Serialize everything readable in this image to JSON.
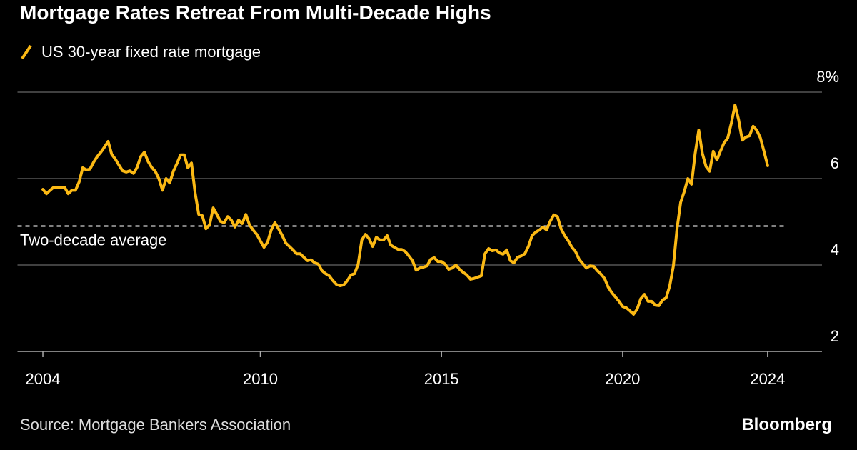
{
  "chart_data": {
    "type": "line",
    "title": "Mortgage Rates Retreat From Multi-Decade Highs",
    "source": "Source: Mortgage Bankers Association",
    "brand": "Bloomberg",
    "x": [
      2004,
      2004.1,
      2004.2,
      2004.3,
      2004.4,
      2004.5,
      2004.6,
      2004.7,
      2004.8,
      2004.9,
      2005,
      2005.1,
      2005.2,
      2005.3,
      2005.4,
      2005.5,
      2005.6,
      2005.7,
      2005.8,
      2005.9,
      2006,
      2006.1,
      2006.2,
      2006.3,
      2006.4,
      2006.5,
      2006.6,
      2006.7,
      2006.8,
      2006.9,
      2007,
      2007.1,
      2007.2,
      2007.3,
      2007.4,
      2007.5,
      2007.6,
      2007.7,
      2007.8,
      2007.9,
      2008,
      2008.1,
      2008.2,
      2008.3,
      2008.4,
      2008.5,
      2008.6,
      2008.7,
      2008.8,
      2008.9,
      2009,
      2009.1,
      2009.2,
      2009.3,
      2009.4,
      2009.5,
      2009.6,
      2009.7,
      2009.8,
      2009.9,
      2010,
      2010.1,
      2010.2,
      2010.3,
      2010.4,
      2010.5,
      2010.6,
      2010.7,
      2010.8,
      2010.9,
      2011,
      2011.1,
      2011.2,
      2011.3,
      2011.4,
      2011.5,
      2011.6,
      2011.7,
      2011.8,
      2011.9,
      2012,
      2012.1,
      2012.2,
      2012.3,
      2012.4,
      2012.5,
      2012.6,
      2012.7,
      2012.8,
      2012.9,
      2013,
      2013.1,
      2013.2,
      2013.3,
      2013.4,
      2013.5,
      2013.6,
      2013.7,
      2013.8,
      2013.9,
      2014,
      2014.1,
      2014.2,
      2014.3,
      2014.4,
      2014.5,
      2014.6,
      2014.7,
      2014.8,
      2014.9,
      2015,
      2015.1,
      2015.2,
      2015.3,
      2015.4,
      2015.5,
      2015.6,
      2015.7,
      2015.8,
      2015.9,
      2016,
      2016.1,
      2016.2,
      2016.3,
      2016.4,
      2016.5,
      2016.6,
      2016.7,
      2016.8,
      2016.9,
      2017,
      2017.1,
      2017.2,
      2017.3,
      2017.4,
      2017.5,
      2017.6,
      2017.7,
      2017.8,
      2017.9,
      2018,
      2018.1,
      2018.2,
      2018.3,
      2018.4,
      2018.5,
      2018.6,
      2018.7,
      2018.8,
      2018.9,
      2019,
      2019.1,
      2019.2,
      2019.3,
      2019.4,
      2019.5,
      2019.6,
      2019.7,
      2019.8,
      2019.9,
      2020,
      2020.1,
      2020.2,
      2020.3,
      2020.4,
      2020.5,
      2020.6,
      2020.7,
      2020.8,
      2020.9,
      2021,
      2021.1,
      2021.2,
      2021.3,
      2021.4,
      2021.5,
      2021.6,
      2021.7,
      2021.8,
      2021.9,
      2022,
      2022.1,
      2022.2,
      2022.3,
      2022.4,
      2022.5,
      2022.6,
      2022.7,
      2022.8,
      2022.9,
      2023,
      2023.1,
      2023.2,
      2023.3,
      2023.4,
      2023.5,
      2023.6,
      2023.7,
      2023.8,
      2023.9,
      2024
    ],
    "series": [
      {
        "name": "US 30-year fixed rate mortgage",
        "color": "#fbb914",
        "values": [
          5.75,
          5.65,
          5.73,
          5.8,
          5.8,
          5.8,
          5.8,
          5.65,
          5.73,
          5.73,
          5.92,
          6.25,
          6.2,
          6.22,
          6.38,
          6.51,
          6.61,
          6.73,
          6.86,
          6.56,
          6.45,
          6.31,
          6.18,
          6.15,
          6.18,
          6.12,
          6.26,
          6.51,
          6.61,
          6.4,
          6.26,
          6.17,
          6.0,
          5.73,
          6.0,
          5.9,
          6.17,
          6.35,
          6.55,
          6.55,
          6.25,
          6.36,
          5.67,
          5.17,
          5.14,
          4.84,
          4.93,
          5.32,
          5.17,
          5.01,
          4.98,
          5.12,
          5.04,
          4.88,
          5.04,
          4.96,
          5.17,
          4.93,
          4.81,
          4.71,
          4.56,
          4.41,
          4.53,
          4.81,
          4.98,
          4.84,
          4.69,
          4.51,
          4.43,
          4.35,
          4.26,
          4.26,
          4.18,
          4.1,
          4.12,
          4.05,
          4.02,
          3.87,
          3.8,
          3.75,
          3.64,
          3.55,
          3.52,
          3.54,
          3.64,
          3.77,
          3.8,
          4.02,
          4.58,
          4.71,
          4.61,
          4.43,
          4.64,
          4.58,
          4.58,
          4.68,
          4.46,
          4.41,
          4.36,
          4.36,
          4.31,
          4.21,
          4.1,
          3.88,
          3.93,
          3.95,
          3.98,
          4.13,
          4.17,
          4.08,
          4.08,
          4.02,
          3.9,
          3.93,
          4.0,
          3.9,
          3.83,
          3.77,
          3.67,
          3.69,
          3.72,
          3.75,
          4.26,
          4.38,
          4.33,
          4.35,
          4.28,
          4.25,
          4.35,
          4.1,
          4.05,
          4.18,
          4.21,
          4.26,
          4.43,
          4.68,
          4.76,
          4.81,
          4.88,
          4.81,
          5.01,
          5.16,
          5.12,
          4.84,
          4.68,
          4.56,
          4.41,
          4.31,
          4.13,
          4.03,
          3.93,
          3.98,
          3.97,
          3.87,
          3.79,
          3.69,
          3.49,
          3.36,
          3.26,
          3.16,
          3.04,
          3.01,
          2.94,
          2.86,
          2.98,
          3.22,
          3.32,
          3.16,
          3.16,
          3.07,
          3.06,
          3.19,
          3.24,
          3.52,
          3.98,
          4.84,
          5.45,
          5.7,
          6.0,
          5.87,
          6.58,
          7.12,
          6.58,
          6.28,
          6.17,
          6.63,
          6.43,
          6.64,
          6.83,
          6.94,
          7.29,
          7.7,
          7.36,
          6.89,
          6.96,
          6.99,
          7.21,
          7.12,
          6.94,
          6.63,
          6.3
        ]
      }
    ],
    "annotations": [
      {
        "text": "Two-decade average",
        "y": 4.9
      }
    ],
    "xlim": [
      2003.3,
      2025.5
    ],
    "xticks": [
      2004,
      2010,
      2015,
      2020,
      2024
    ],
    "ylim": [
      2,
      8
    ],
    "yticks": [
      2,
      4,
      6,
      {
        "value": 8,
        "label": "8%"
      }
    ],
    "grid": true
  }
}
